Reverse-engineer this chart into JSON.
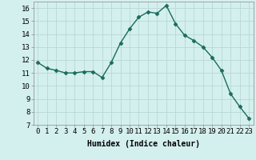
{
  "xlabel": "Humidex (Indice chaleur)",
  "x": [
    0,
    1,
    2,
    3,
    4,
    5,
    6,
    7,
    8,
    9,
    10,
    11,
    12,
    13,
    14,
    15,
    16,
    17,
    18,
    19,
    20,
    21,
    22,
    23
  ],
  "y": [
    11.8,
    11.35,
    11.2,
    11.0,
    11.0,
    11.1,
    11.1,
    10.65,
    11.8,
    13.3,
    14.4,
    15.3,
    15.7,
    15.6,
    16.2,
    14.8,
    13.9,
    13.5,
    13.0,
    12.2,
    11.2,
    9.4,
    8.4,
    7.5
  ],
  "line_color": "#1a6b5e",
  "marker": "D",
  "markersize": 2.5,
  "linewidth": 1.0,
  "bg_color": "#d4f0ee",
  "grid_color": "#b8d8d4",
  "xlim": [
    -0.5,
    23.5
  ],
  "ylim": [
    7,
    16.5
  ],
  "yticks": [
    7,
    8,
    9,
    10,
    11,
    12,
    13,
    14,
    15,
    16
  ],
  "xtick_labels": [
    "0",
    "1",
    "2",
    "3",
    "4",
    "5",
    "6",
    "7",
    "8",
    "9",
    "10",
    "11",
    "12",
    "13",
    "14",
    "15",
    "16",
    "17",
    "18",
    "19",
    "20",
    "21",
    "22",
    "23"
  ],
  "xlabel_fontsize": 7,
  "tick_fontsize": 6.5,
  "title_fontsize": 7
}
